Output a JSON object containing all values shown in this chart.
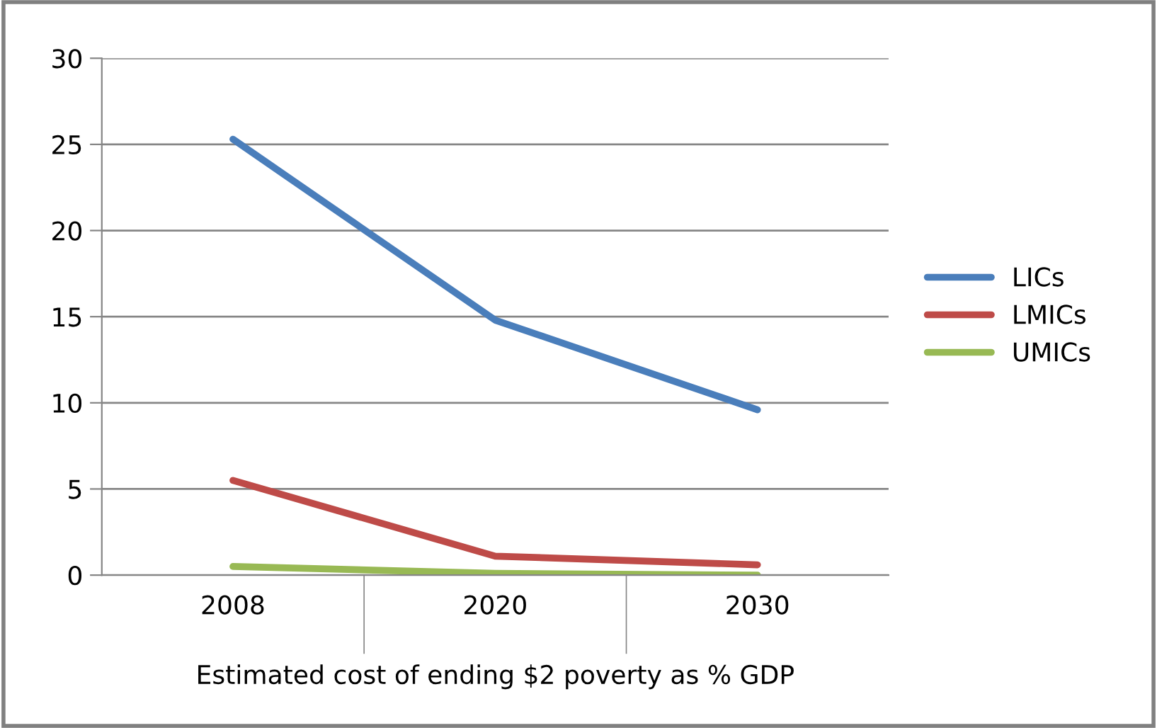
{
  "chart_data": {
    "type": "line",
    "xlabel": "Estimated cost of ending $2 poverty as % GDP",
    "categories": [
      "2008",
      "2020",
      "2030"
    ],
    "series": [
      {
        "name": "LICs",
        "color": "#4a7ebb",
        "values": [
          25.3,
          14.8,
          9.6
        ]
      },
      {
        "name": "LMICs",
        "color": "#be4b48",
        "values": [
          5.5,
          1.1,
          0.6
        ]
      },
      {
        "name": "UMICs",
        "color": "#98b954",
        "values": [
          0.5,
          0.1,
          0
        ]
      }
    ],
    "ylim": [
      0,
      30
    ],
    "yticks": [
      0,
      5,
      10,
      15,
      20,
      25,
      30
    ],
    "grid": "y",
    "legend": "right",
    "marker": "none",
    "line_style": "solid"
  }
}
